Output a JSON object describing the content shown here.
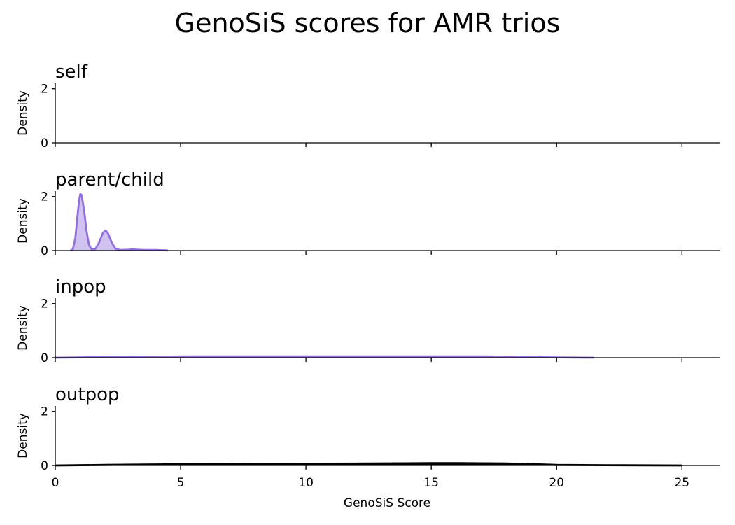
{
  "title": "GenoSiS scores for AMR trios",
  "chart_data": {
    "type": "area",
    "title": "GenoSiS scores for AMR trios",
    "xlabel": "GenoSiS Score",
    "ylabel": "Density",
    "xlim": [
      0,
      26.5
    ],
    "ylim": [
      0,
      2.2
    ],
    "x_ticks": [
      0,
      5,
      10,
      15,
      20,
      25
    ],
    "y_ticks": [
      0,
      2
    ],
    "shared_x": true,
    "grid": false,
    "legend": "none",
    "panels": [
      {
        "title": "self",
        "color": "#9370db",
        "fill": "#b9a3ea",
        "points": []
      },
      {
        "title": "parent/child",
        "color": "#9370db",
        "fill": "#b9a3ea",
        "points": [
          [
            0.6,
            0.0
          ],
          [
            0.7,
            0.05
          ],
          [
            0.8,
            0.45
          ],
          [
            0.9,
            1.4
          ],
          [
            0.95,
            1.85
          ],
          [
            1.0,
            2.1
          ],
          [
            1.05,
            2.05
          ],
          [
            1.15,
            1.5
          ],
          [
            1.25,
            0.7
          ],
          [
            1.35,
            0.2
          ],
          [
            1.45,
            0.05
          ],
          [
            1.6,
            0.06
          ],
          [
            1.75,
            0.3
          ],
          [
            1.9,
            0.65
          ],
          [
            2.0,
            0.75
          ],
          [
            2.1,
            0.65
          ],
          [
            2.25,
            0.3
          ],
          [
            2.4,
            0.07
          ],
          [
            2.6,
            0.02
          ],
          [
            2.9,
            0.03
          ],
          [
            3.1,
            0.05
          ],
          [
            3.3,
            0.03
          ],
          [
            3.6,
            0.02
          ],
          [
            4.0,
            0.02
          ],
          [
            4.4,
            0.01
          ],
          [
            4.5,
            0.0
          ]
        ]
      },
      {
        "title": "inpop",
        "color": "#9370db",
        "fill": "#b9a3ea",
        "points": [
          [
            0,
            0.0
          ],
          [
            2,
            0.02
          ],
          [
            4,
            0.04
          ],
          [
            6,
            0.05
          ],
          [
            8,
            0.05
          ],
          [
            10,
            0.05
          ],
          [
            12,
            0.05
          ],
          [
            14,
            0.05
          ],
          [
            16,
            0.05
          ],
          [
            17,
            0.05
          ],
          [
            18,
            0.04
          ],
          [
            19,
            0.02
          ],
          [
            20,
            0.01
          ],
          [
            21.5,
            0.0
          ]
        ]
      },
      {
        "title": "outpop",
        "color": "#000000",
        "fill": "#000000",
        "points": [
          [
            0,
            0.0
          ],
          [
            2,
            0.02
          ],
          [
            4,
            0.04
          ],
          [
            6,
            0.05
          ],
          [
            8,
            0.06
          ],
          [
            10,
            0.065
          ],
          [
            12,
            0.07
          ],
          [
            14,
            0.08
          ],
          [
            15,
            0.085
          ],
          [
            16,
            0.085
          ],
          [
            17,
            0.08
          ],
          [
            18,
            0.075
          ],
          [
            19,
            0.05
          ],
          [
            20,
            0.02
          ],
          [
            22,
            0.01
          ],
          [
            25,
            0.0
          ]
        ]
      }
    ]
  }
}
